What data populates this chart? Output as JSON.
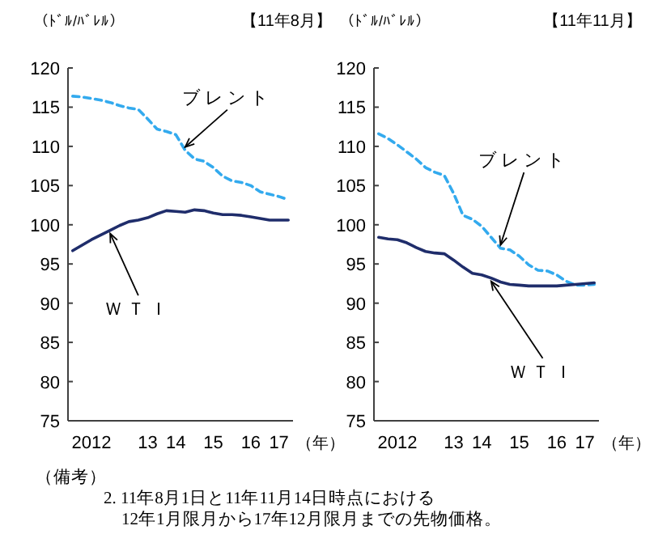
{
  "chart_data": [
    {
      "type": "line",
      "title": "【11年8月】",
      "ylabel": "（ﾄﾞﾙ/ﾊﾞﾚﾙ）",
      "xlabel": "（年）",
      "categories": [
        null,
        null,
        "2012",
        null,
        null,
        null,
        null,
        null,
        "13",
        null,
        null,
        "14",
        null,
        null,
        null,
        "15",
        null,
        null,
        null,
        "16",
        null,
        null,
        "17",
        null
      ],
      "series": [
        {
          "name": "ブレント",
          "color": "#33aaee",
          "line_style": "dashed",
          "values": [
            116.4,
            116.3,
            116.1,
            115.9,
            115.6,
            115.2,
            114.9,
            114.7,
            113.5,
            112.2,
            111.9,
            111.5,
            109.5,
            108.4,
            108.1,
            107.3,
            106.2,
            105.6,
            105.4,
            105.0,
            104.2,
            103.9,
            103.6,
            103.2
          ]
        },
        {
          "name": "ＷＴＩ",
          "color": "#1f2d6b",
          "line_style": "solid",
          "values": [
            96.7,
            97.4,
            98.1,
            98.7,
            99.3,
            99.9,
            100.4,
            100.6,
            100.9,
            101.4,
            101.8,
            101.7,
            101.6,
            101.9,
            101.8,
            101.5,
            101.3,
            101.3,
            101.2,
            101.0,
            100.8,
            100.6,
            100.6,
            100.6
          ]
        }
      ],
      "ylim": [
        75,
        120
      ],
      "yticks": [
        75,
        80,
        85,
        90,
        95,
        100,
        105,
        110,
        115,
        120
      ],
      "legend": false,
      "grid": false,
      "marker": "none",
      "annotations": [
        "（備考）",
        "2. 11年8月1日と11年11月14日時点における",
        "12年1月限月から17年12月限月までの先物価格。"
      ]
    },
    {
      "type": "line",
      "title": "【11年11月】",
      "ylabel": "（ﾄﾞﾙ/ﾊﾞﾚﾙ）",
      "xlabel": "（年）",
      "categories": [
        null,
        null,
        "2012",
        null,
        null,
        null,
        null,
        null,
        "13",
        null,
        null,
        "14",
        null,
        null,
        null,
        "15",
        null,
        null,
        null,
        "16",
        null,
        null,
        "17",
        null
      ],
      "series": [
        {
          "name": "ブレント",
          "color": "#33aaee",
          "line_style": "dashed",
          "values": [
            111.6,
            111.0,
            110.2,
            109.3,
            108.4,
            107.3,
            106.7,
            106.3,
            104.0,
            101.2,
            100.7,
            99.8,
            98.4,
            97.0,
            96.8,
            96.0,
            94.9,
            94.2,
            94.1,
            93.6,
            92.8,
            92.3,
            92.3,
            92.4
          ]
        },
        {
          "name": "ＷＴＩ",
          "color": "#1f2d6b",
          "line_style": "solid",
          "values": [
            98.4,
            98.2,
            98.1,
            97.7,
            97.1,
            96.6,
            96.4,
            96.3,
            95.5,
            94.6,
            93.8,
            93.6,
            93.2,
            92.7,
            92.4,
            92.3,
            92.2,
            92.2,
            92.2,
            92.2,
            92.3,
            92.4,
            92.5,
            92.6
          ]
        }
      ],
      "ylim": [
        75,
        120
      ],
      "yticks": [
        75,
        80,
        85,
        90,
        95,
        100,
        105,
        110,
        115,
        120
      ],
      "legend": false,
      "grid": false,
      "marker": "none"
    }
  ]
}
